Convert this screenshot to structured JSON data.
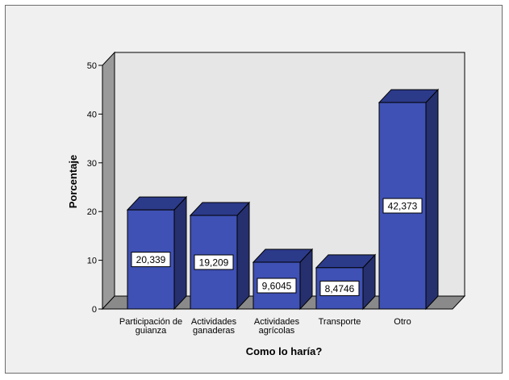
{
  "chart_data": {
    "type": "bar",
    "title": "",
    "xlabel": "Como lo haría?",
    "ylabel": "Porcentaje",
    "ylim": [
      0,
      50
    ],
    "yticks": [
      0,
      10,
      20,
      30,
      40,
      50
    ],
    "categories": [
      [
        "Participación de",
        "guianza"
      ],
      [
        "Actividades",
        "ganaderas"
      ],
      [
        "Actividades",
        "agrícolas"
      ],
      [
        "Transporte"
      ],
      [
        "Otro"
      ]
    ],
    "values": [
      20.339,
      19.209,
      9.6045,
      8.4746,
      42.373
    ],
    "data_labels": [
      "20,339",
      "19,209",
      "9,6045",
      "8,4746",
      "42,373"
    ],
    "grid": false,
    "style": "3d",
    "colors": {
      "bar_front": "#3f51b5",
      "bar_side": "#26306e",
      "bar_top": "#2c3a8a",
      "wall": "#e6e6e6",
      "floor": "#8a8a8a",
      "frame_background": "#f0f0f0"
    }
  }
}
